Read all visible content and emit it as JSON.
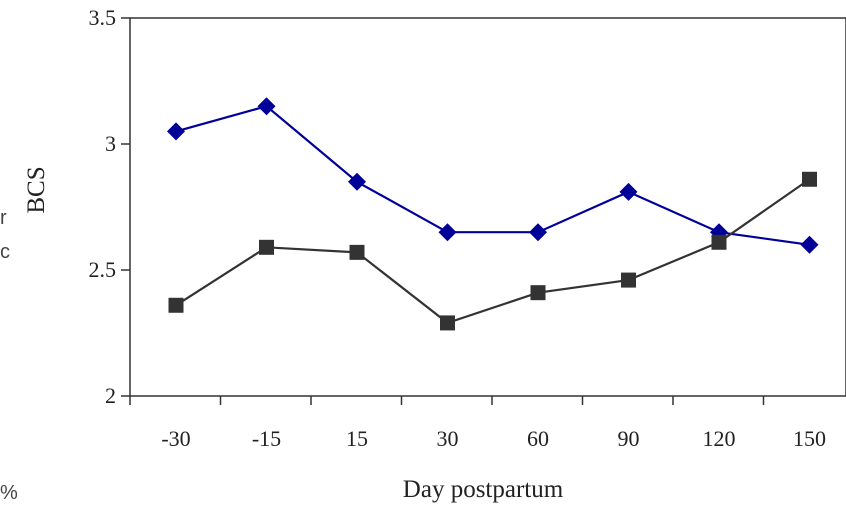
{
  "chart_data": {
    "type": "line",
    "xlabel": "Day postpartum",
    "ylabel": "BCS",
    "categories": [
      "-30",
      "-15",
      "15",
      "30",
      "60",
      "90",
      "120",
      "150"
    ],
    "ylim": [
      2,
      3.5
    ],
    "yticks": [
      "2",
      "2.5",
      "3",
      "3.5"
    ],
    "grid": false,
    "legend": "none",
    "series": [
      {
        "marker": "diamond",
        "color": "#000099",
        "values": [
          3.05,
          3.15,
          2.85,
          2.65,
          2.65,
          2.81,
          2.65,
          2.6
        ]
      },
      {
        "marker": "square",
        "color": "#333333",
        "values": [
          2.36,
          2.59,
          2.57,
          2.29,
          2.41,
          2.46,
          2.61,
          2.86
        ]
      }
    ]
  },
  "edge_text": [
    "r",
    "c",
    "%"
  ]
}
